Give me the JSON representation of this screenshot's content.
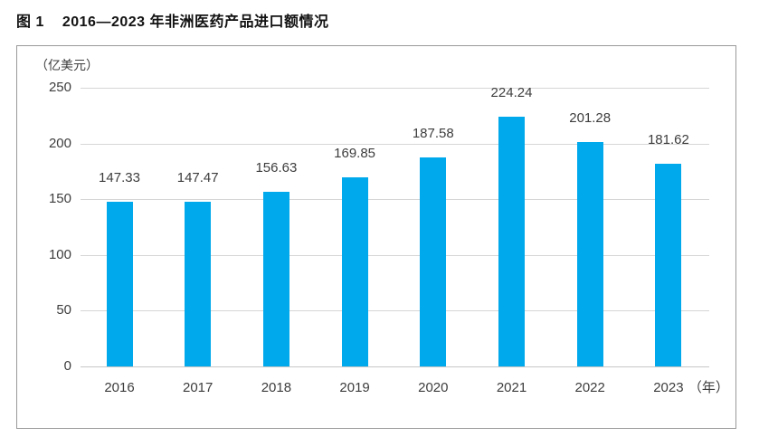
{
  "figure": {
    "label": "图 1",
    "title": "2016—2023 年非洲医药产品进口额情况"
  },
  "chart_data": {
    "type": "bar",
    "title": "图 1 2016—2023 年非洲医药产品进口额情况",
    "unit_label": "（亿美元）",
    "x_axis_suffix": "（年）",
    "categories": [
      "2016",
      "2017",
      "2018",
      "2019",
      "2020",
      "2021",
      "2022",
      "2023"
    ],
    "values": [
      147.33,
      147.47,
      156.63,
      169.85,
      187.58,
      224.24,
      201.28,
      181.62
    ],
    "y_ticks": [
      0,
      50,
      100,
      150,
      200,
      250
    ],
    "ylim": [
      0,
      250
    ],
    "grid": true,
    "legend": "none",
    "bar_color": "#00a9eb",
    "grid_color": "#d6d6d6",
    "frame_color": "#9a9a9a",
    "text_color": "#3d3d3d"
  }
}
